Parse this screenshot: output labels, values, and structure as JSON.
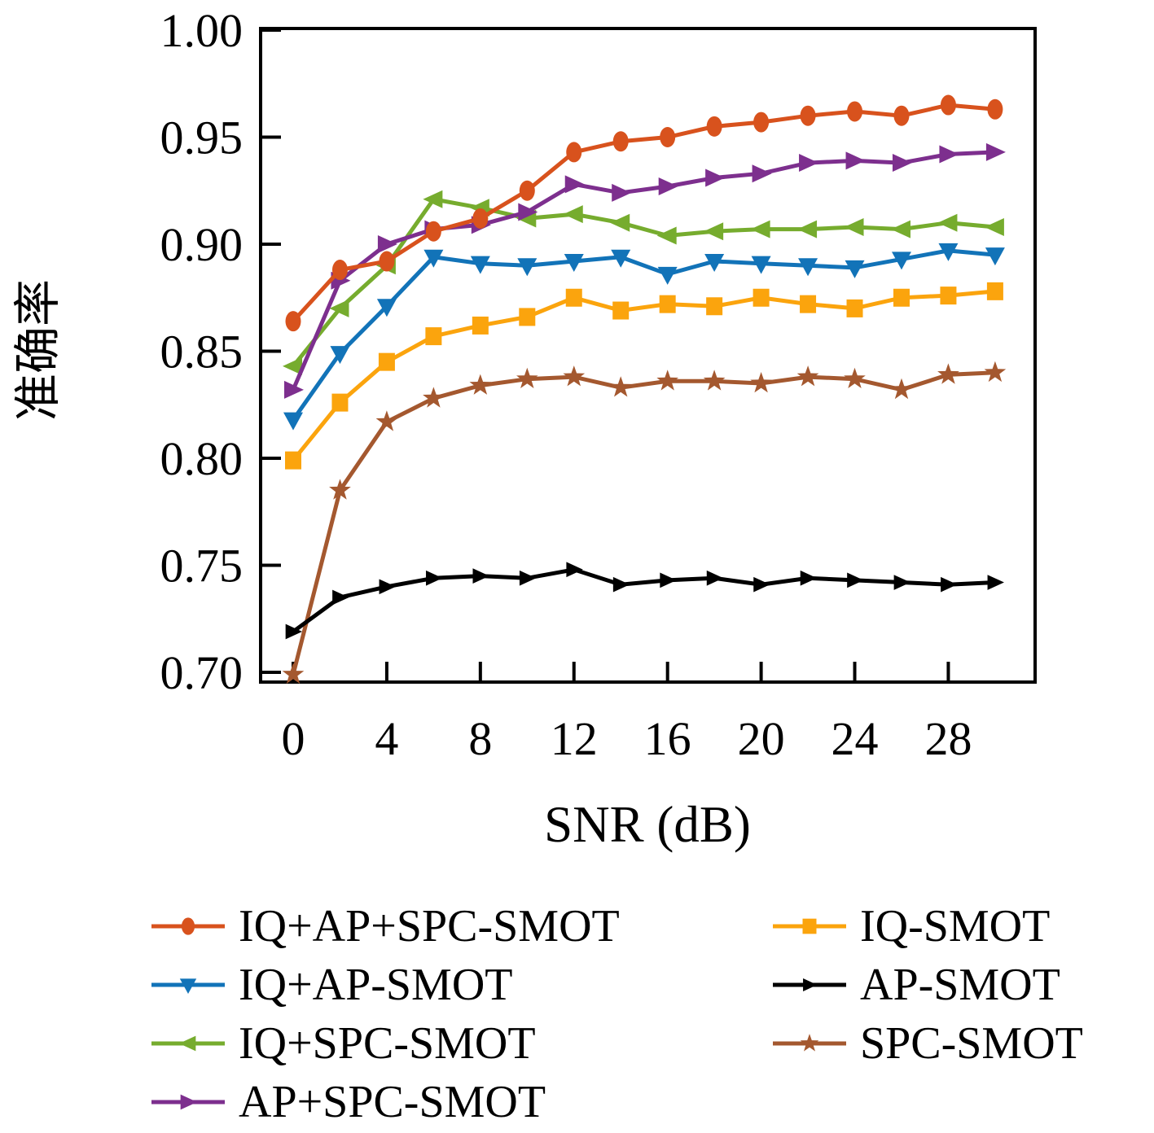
{
  "chart_data": {
    "type": "line",
    "title": "",
    "xlabel": "SNR (dB)",
    "ylabel": "准确率",
    "xlim": [
      -1.4,
      31.7
    ],
    "ylim": [
      0.695,
      1.0
    ],
    "grid": false,
    "legend_position": "below-two-columns",
    "x": [
      0,
      2,
      4,
      6,
      8,
      10,
      12,
      14,
      16,
      18,
      20,
      22,
      24,
      26,
      28,
      30
    ],
    "x_tick_values": [
      0,
      4,
      8,
      12,
      16,
      20,
      24,
      28
    ],
    "y_tick_labels": [
      "1.00",
      "0.95",
      "0.90",
      "0.85",
      "0.80",
      "0.75",
      "0.70"
    ],
    "series": [
      {
        "name": "SPC-SMOT",
        "color": "#a4582f",
        "marker": "star",
        "marker_scale": 1,
        "values": [
          0.699,
          0.785,
          0.817,
          0.828,
          0.834,
          0.837,
          0.838,
          0.833,
          0.836,
          0.836,
          0.835,
          0.838,
          0.837,
          0.832,
          0.839,
          0.84
        ]
      },
      {
        "name": "AP-SMOT",
        "color": "#000000",
        "marker": "triangle-right",
        "marker_scale": 0.85,
        "values": [
          0.719,
          0.735,
          0.74,
          0.744,
          0.745,
          0.744,
          0.748,
          0.741,
          0.743,
          0.744,
          0.741,
          0.744,
          0.743,
          0.742,
          0.741,
          0.742
        ]
      },
      {
        "name": "IQ-SMOT",
        "color": "#fba40d",
        "marker": "square",
        "marker_scale": 1,
        "values": [
          0.799,
          0.826,
          0.845,
          0.857,
          0.862,
          0.866,
          0.875,
          0.869,
          0.872,
          0.871,
          0.875,
          0.872,
          0.87,
          0.875,
          0.876,
          0.878
        ]
      },
      {
        "name": "IQ+AP-SMOT",
        "color": "#1273b8",
        "marker": "triangle-down",
        "marker_scale": 1,
        "values": [
          0.818,
          0.849,
          0.871,
          0.894,
          0.891,
          0.89,
          0.892,
          0.894,
          0.886,
          0.892,
          0.891,
          0.89,
          0.889,
          0.893,
          0.897,
          0.895
        ]
      },
      {
        "name": "IQ+SPC-SMOT",
        "color": "#76ac2e",
        "marker": "triangle-left",
        "marker_scale": 1,
        "values": [
          0.843,
          0.87,
          0.89,
          0.921,
          0.917,
          0.912,
          0.914,
          0.91,
          0.904,
          0.906,
          0.907,
          0.907,
          0.908,
          0.907,
          0.91,
          0.908
        ]
      },
      {
        "name": "AP+SPC-SMOT",
        "color": "#7d2f8e",
        "marker": "triangle-right",
        "marker_scale": 1,
        "values": [
          0.832,
          0.883,
          0.9,
          0.907,
          0.909,
          0.915,
          0.928,
          0.924,
          0.927,
          0.931,
          0.933,
          0.938,
          0.939,
          0.938,
          0.942,
          0.943
        ]
      },
      {
        "name": "IQ+AP+SPC-SMOT",
        "color": "#d8521d",
        "marker": "circle",
        "marker_scale": 1,
        "values": [
          0.864,
          0.888,
          0.892,
          0.906,
          0.912,
          0.925,
          0.943,
          0.948,
          0.95,
          0.955,
          0.957,
          0.96,
          0.962,
          0.96,
          0.965,
          0.963
        ]
      }
    ],
    "legend": {
      "left_column": [
        "IQ+AP+SPC-SMOT",
        "IQ+AP-SMOT",
        "IQ+SPC-SMOT",
        "AP+SPC-SMOT"
      ],
      "right_column": [
        "IQ-SMOT",
        "AP-SMOT",
        "SPC-SMOT"
      ]
    }
  }
}
